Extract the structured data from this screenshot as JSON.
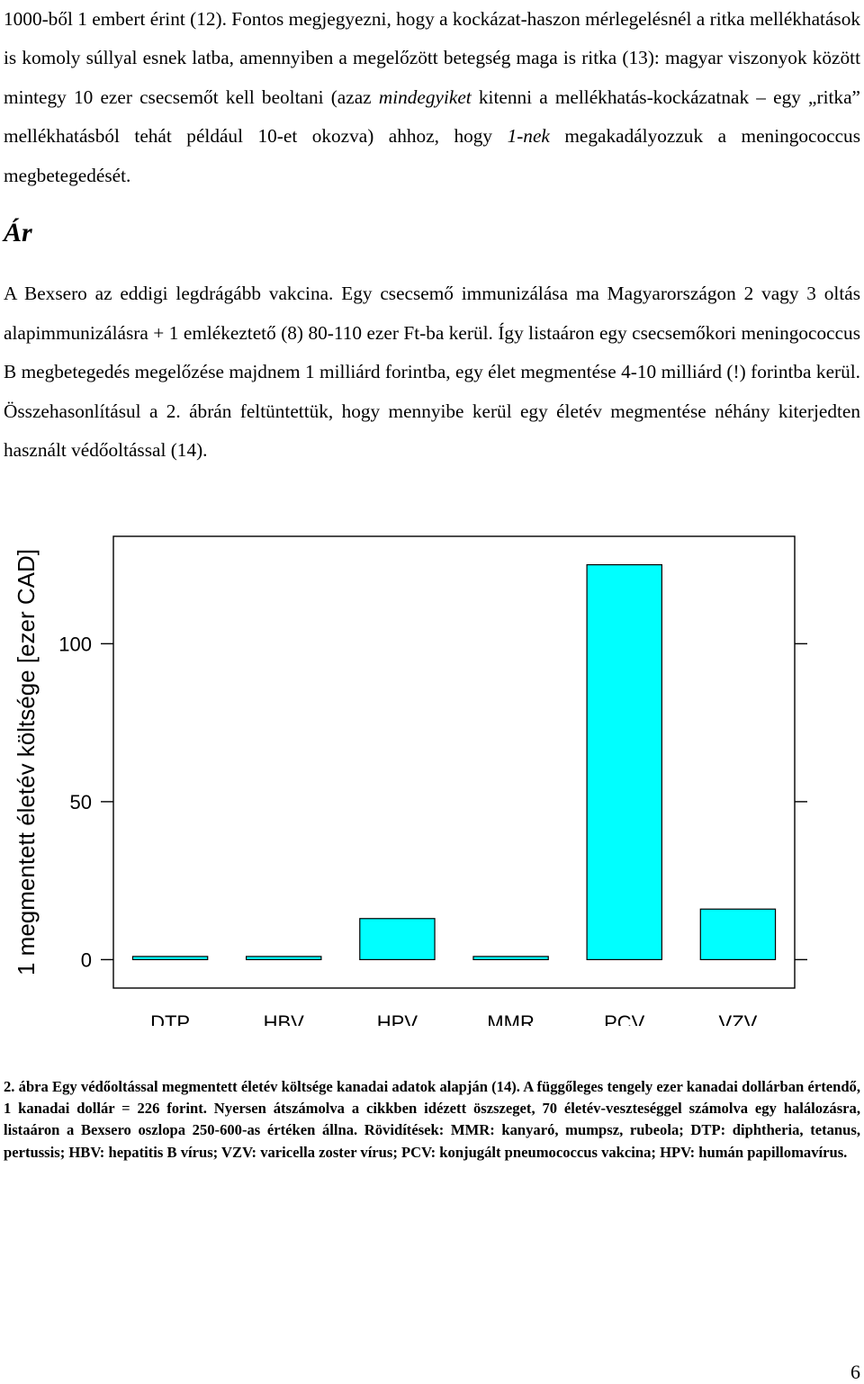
{
  "paragraph1": {
    "part1": "1000-ből 1 embert érint (12). Fontos megjegyezni, hogy a kockázat-haszon mérlegelésnél a ritka mellékhatások is komoly súllyal esnek latba, amennyiben a megelőzött betegség maga is ritka (13): magyar viszonyok között mintegy 10 ezer csecsemőt kell beoltani (azaz ",
    "italic1": "mindegyiket",
    "part2": " kitenni a mellékhatás-kockázatnak – egy „ritka” mellékhatásból tehát például 10-et okozva) ahhoz, hogy ",
    "italic2": "1-nek",
    "part3": " megakadályozzuk a meningococcus megbetegedését."
  },
  "heading": "Ár",
  "paragraph2": "A Bexsero az eddigi legdrágább vakcina. Egy csecsemő immunizálása ma Magyarországon 2 vagy 3 oltás alapimmunizálásra + 1 emlékeztető (8) 80-110 ezer Ft-ba kerül. Így listaáron egy csecsemőkori meningococcus B megbetegedés megelőzése majdnem 1 milliárd forintba, egy élet megmentése 4-10 milliárd (!) forintba kerül. Összehasonlításul a 2. ábrán feltüntettük, hogy mennyibe kerül egy életév megmentése néhány kiterjedten használt védőoltással (14).",
  "chart_data": {
    "type": "bar",
    "categories": [
      "DTP",
      "HBV",
      "HPV",
      "MMR",
      "PCV",
      "VZV"
    ],
    "values": [
      1,
      1,
      13,
      1,
      125,
      16
    ],
    "ylabel": "1 megmentett életév költsége [ezer CAD]",
    "yticks": [
      "0",
      "50",
      "100"
    ],
    "ylim": [
      -9,
      134
    ],
    "bar_color": "#00ffff",
    "grid": false
  },
  "caption": "2. ábra Egy védőoltással megmentett életév költsége kanadai adatok alapján (14). A függőleges tengely ezer kanadai dollárban értendő, 1 kanadai dollár = 226 forint. Nyersen átszámolva a cikkben idézett öszszeget, 70 életév-veszteséggel számolva egy halálozásra, listaáron a Bexsero oszlopa 250-600-as értéken állna. Rövidítések: MMR: kanyaró, mumpsz, rubeola; DTP: diphtheria, tetanus, pertussis; HBV: hepatitis B vírus; VZV: varicella zoster vírus; PCV: konjugált pneumococcus vakcina; HPV: humán papillomavírus.",
  "page_number": "6"
}
